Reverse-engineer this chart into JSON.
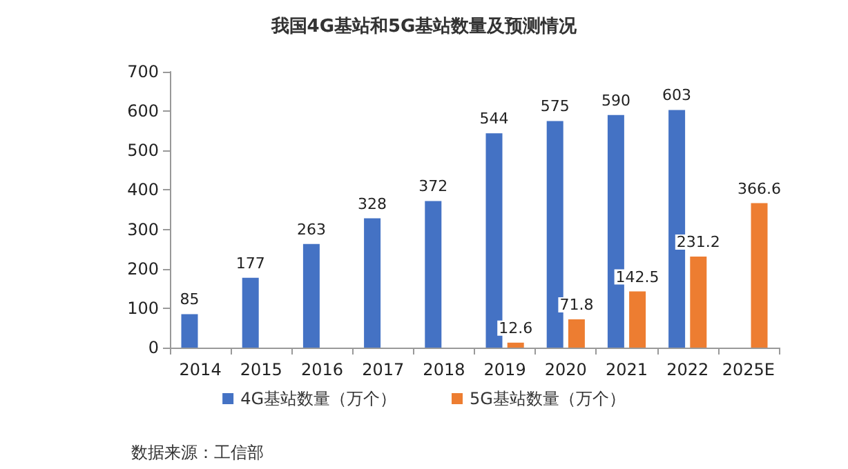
{
  "chart_data": {
    "type": "bar",
    "title": "我国4G基站和5G基站数量及预测情况",
    "categories": [
      "2014",
      "2015",
      "2016",
      "2017",
      "2018",
      "2019",
      "2020",
      "2021",
      "2022",
      "2025E"
    ],
    "series": [
      {
        "name": "4G基站数量（万个）",
        "color": "#4472c4",
        "values": [
          85,
          177,
          263,
          328,
          372,
          544,
          575,
          590,
          603,
          null
        ]
      },
      {
        "name": "5G基站数量（万个）",
        "color": "#ed7d31",
        "values": [
          null,
          null,
          null,
          null,
          null,
          12.6,
          71.8,
          142.5,
          231.2,
          366.6
        ]
      }
    ],
    "ylim": [
      0,
      700
    ],
    "yticks": [
      0,
      100,
      200,
      300,
      400,
      500,
      600,
      700
    ],
    "grid": false,
    "legend": "bottom",
    "data_labels": true,
    "annotations": [
      "数据来源：工信部"
    ]
  }
}
